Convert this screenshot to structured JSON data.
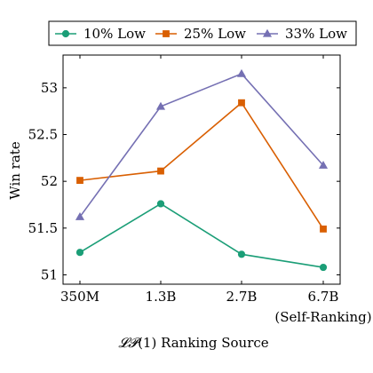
{
  "chart_data": {
    "type": "line",
    "categories": [
      "350M",
      "1.3B",
      "2.7B",
      "6.7B"
    ],
    "category_sublabels": [
      "",
      "",
      "",
      "(Self-Ranking)"
    ],
    "series": [
      {
        "name": "10% Low",
        "values": [
          51.24,
          51.76,
          51.22,
          51.08
        ],
        "color": "#1b9e77",
        "marker": "circle"
      },
      {
        "name": "25% Low",
        "values": [
          52.01,
          52.11,
          52.84,
          51.49
        ],
        "color": "#d95f02",
        "marker": "square"
      },
      {
        "name": "33% Low",
        "values": [
          51.62,
          52.8,
          53.15,
          52.17
        ],
        "color": "#7570b3",
        "marker": "triangle"
      }
    ],
    "xlabel_prefix": "𝓛𝓟",
    "xlabel_suffix": "(1) Ranking Source",
    "ylabel": "Win rate",
    "ylim": [
      50.9,
      53.35
    ],
    "yticks": [
      51,
      51.5,
      52,
      52.5,
      53
    ],
    "ytick_labels": [
      "51",
      "51.5",
      "52",
      "52.5",
      "53"
    ],
    "grid": false,
    "legend_position": "top"
  }
}
